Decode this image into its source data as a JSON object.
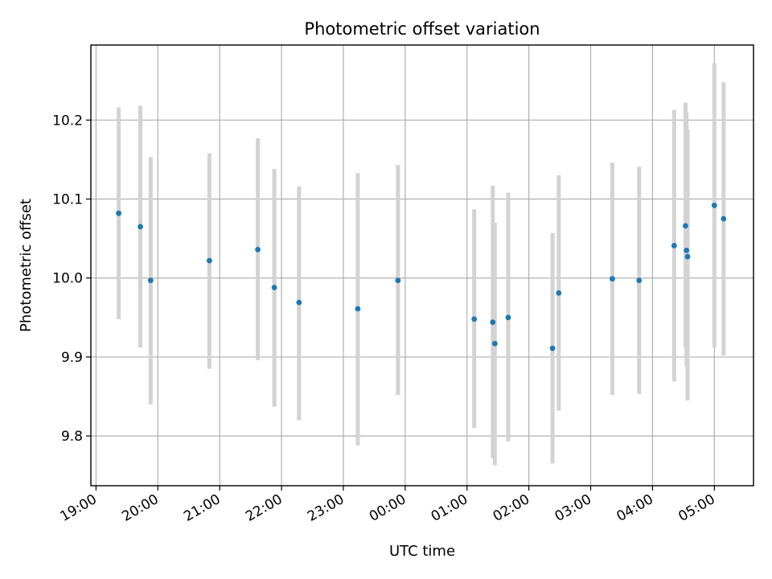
{
  "chart_data": {
    "type": "scatter",
    "title": "Photometric offset variation",
    "xlabel": "UTC time",
    "ylabel": "Photometric offset",
    "x_unit": "hours (UTC clock, wrapping past midnight)",
    "xlim": [
      "18:55",
      "05:38"
    ],
    "ylim": [
      9.737,
      10.295
    ],
    "x_ticks": [
      "19:00",
      "20:00",
      "21:00",
      "22:00",
      "23:00",
      "00:00",
      "01:00",
      "02:00",
      "03:00",
      "04:00",
      "05:00"
    ],
    "y_ticks": [
      "9.8",
      "9.9",
      "10.0",
      "10.1",
      "10.2"
    ],
    "grid": true,
    "point_color": "#1f77b4",
    "errorbar_color": "#d3d3d3",
    "series": [
      {
        "points": [
          {
            "x": "19:22",
            "y": 10.082,
            "low": 9.948,
            "high": 10.216
          },
          {
            "x": "19:43",
            "y": 10.065,
            "low": 9.912,
            "high": 10.218
          },
          {
            "x": "19:53",
            "y": 9.997,
            "low": 9.84,
            "high": 10.153
          },
          {
            "x": "20:50",
            "y": 10.022,
            "low": 9.885,
            "high": 10.158
          },
          {
            "x": "21:37",
            "y": 10.036,
            "low": 9.896,
            "high": 10.177
          },
          {
            "x": "21:53",
            "y": 9.988,
            "low": 9.837,
            "high": 10.138
          },
          {
            "x": "22:17",
            "y": 9.969,
            "low": 9.82,
            "high": 10.116
          },
          {
            "x": "23:14",
            "y": 9.961,
            "low": 9.788,
            "high": 10.133
          },
          {
            "x": "23:53",
            "y": 9.997,
            "low": 9.852,
            "high": 10.143
          },
          {
            "x": "01:07",
            "y": 9.948,
            "low": 9.81,
            "high": 10.087
          },
          {
            "x": "01:25",
            "y": 9.944,
            "low": 9.772,
            "high": 10.117
          },
          {
            "x": "01:27",
            "y": 9.917,
            "low": 9.763,
            "high": 10.07
          },
          {
            "x": "01:40",
            "y": 9.95,
            "low": 9.793,
            "high": 10.108
          },
          {
            "x": "02:23",
            "y": 9.911,
            "low": 9.765,
            "high": 10.057
          },
          {
            "x": "02:29",
            "y": 9.981,
            "low": 9.832,
            "high": 10.13
          },
          {
            "x": "03:21",
            "y": 9.999,
            "low": 9.852,
            "high": 10.146
          },
          {
            "x": "03:47",
            "y": 9.997,
            "low": 9.853,
            "high": 10.141
          },
          {
            "x": "04:21",
            "y": 10.041,
            "low": 9.869,
            "high": 10.213
          },
          {
            "x": "04:32",
            "y": 10.066,
            "low": 9.912,
            "high": 10.222
          },
          {
            "x": "04:33",
            "y": 10.035,
            "low": 9.888,
            "high": 10.21
          },
          {
            "x": "04:34",
            "y": 10.027,
            "low": 9.845,
            "high": 10.188
          },
          {
            "x": "05:00",
            "y": 10.092,
            "low": 9.912,
            "high": 10.272
          },
          {
            "x": "05:09",
            "y": 10.075,
            "low": 9.902,
            "high": 10.248
          }
        ]
      }
    ]
  }
}
